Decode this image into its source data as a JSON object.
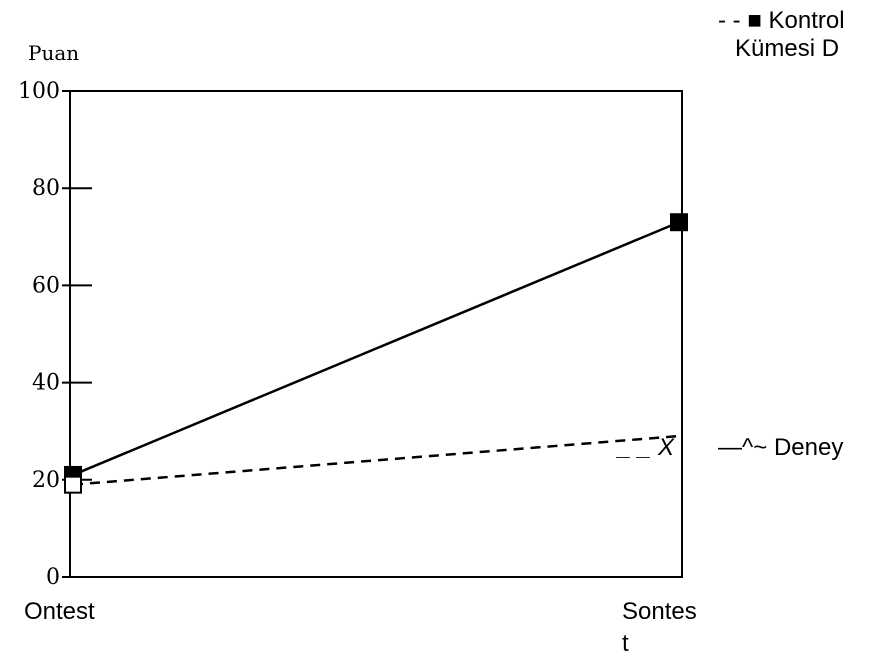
{
  "chart_data": {
    "type": "line",
    "ylabel": "Puan",
    "categories": [
      "Ontest",
      "Sontes\nt"
    ],
    "ylim": [
      0,
      100
    ],
    "yticks": [
      0,
      20,
      40,
      60,
      80,
      100
    ],
    "grid": false,
    "series": [
      {
        "name": "Kontrol Kümesi D",
        "values": [
          21,
          73
        ],
        "style": "solid",
        "marker": "filled-square",
        "color": "#000000"
      },
      {
        "name": "Deney",
        "values": [
          19,
          29
        ],
        "style": "dashed",
        "marker": "open-square",
        "color": "#000000"
      }
    ],
    "annotations": {
      "legend_kontrol_line1": "- - ■ Kontrol",
      "legend_kontrol_line2": "Kümesi D",
      "deney_prefix": "_ _ X",
      "deney_label": "—^~ Deney"
    }
  }
}
